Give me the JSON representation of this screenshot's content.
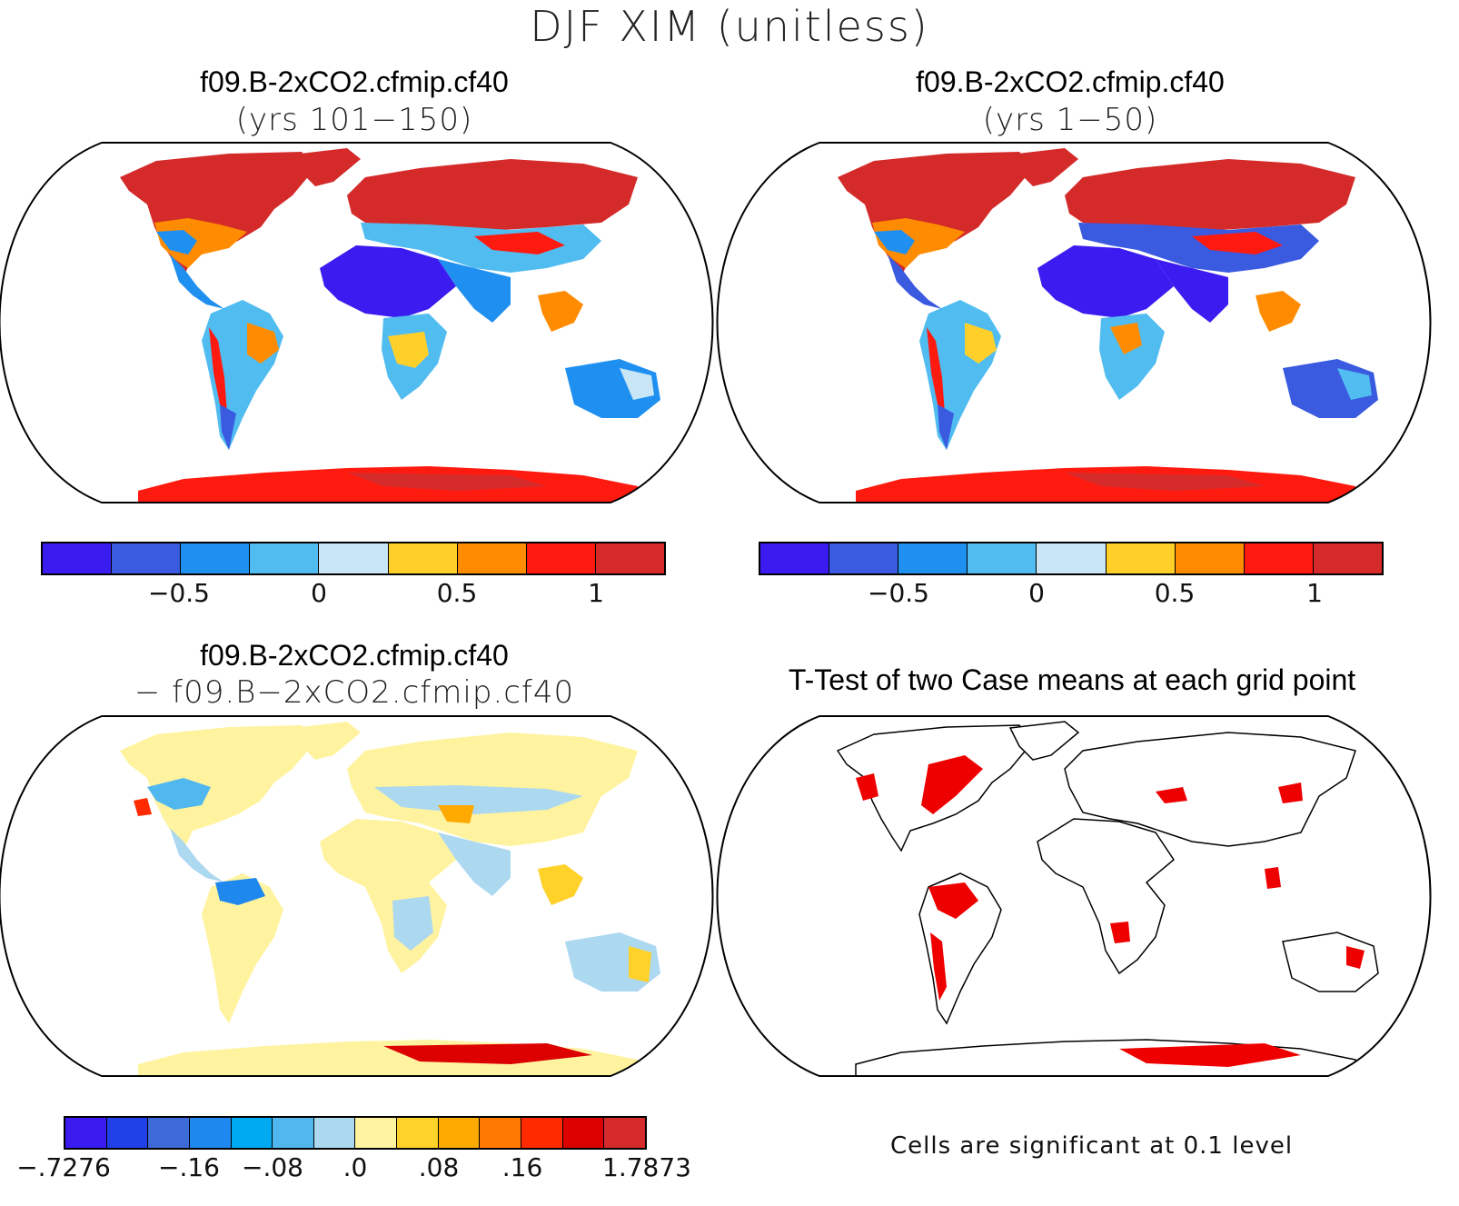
{
  "figure": {
    "title": "DJF XIM (unitless)"
  },
  "panels": {
    "top_left": {
      "case": "f09.B-2xCO2.cfmip.cf40",
      "years": "(yrs 101−150)"
    },
    "top_right": {
      "case": "f09.B-2xCO2.cfmip.cf40",
      "years": "(yrs 1−50)"
    },
    "bottom_left": {
      "case": "f09.B-2xCO2.cfmip.cf40",
      "minus_case": "− f09.B−2xCO2.cfmip.cf40"
    },
    "bottom_right": {
      "title": "T-Test of two Case means at each grid point",
      "note": "Cells are significant at 0.1 level"
    }
  },
  "colorbars": {
    "absolute": {
      "colors": [
        "#3b1cf0",
        "#3a5ae0",
        "#2090f0",
        "#50bcf0",
        "#c8e6f6",
        "#ffd02a",
        "#ff8c00",
        "#ff1a10",
        "#d42a2a"
      ],
      "tick_labels": [
        "−0.5",
        "0",
        "0.5",
        "1"
      ]
    },
    "difference": {
      "colors": [
        "#3b1cf0",
        "#2040e8",
        "#3d6ad8",
        "#1f88ee",
        "#00aaf2",
        "#50b8ee",
        "#acd8f0",
        "#fff3a0",
        "#ffd22a",
        "#ffaa00",
        "#ff7a00",
        "#ff2a00",
        "#dc0000",
        "#d42a2a"
      ],
      "tick_labels": [
        "−.7276",
        "−.16",
        "−.08",
        ".0",
        ".08",
        ".16",
        "1.7873"
      ]
    }
  },
  "significance_color": "#ee0000"
}
